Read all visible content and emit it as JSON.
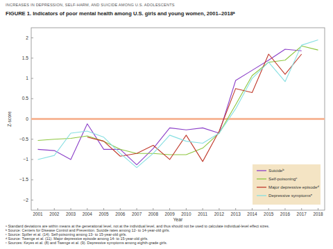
{
  "chart_data": {
    "type": "line",
    "header": "INCREASES IN DEPRESSION, SELF-HARM, AND SUICIDE AMONG U.S. ADOLESCENTS",
    "title": "FIGURE 1. Indicators of poor mental health among U.S. girls and young women, 2001–2018ᵃ",
    "x_label": "Year",
    "y_label": "Z-score",
    "x": [
      2001,
      2002,
      2003,
      2004,
      2005,
      2006,
      2007,
      2008,
      2009,
      2010,
      2011,
      2012,
      2013,
      2014,
      2015,
      2016,
      2017,
      2018
    ],
    "series": [
      {
        "name": "Suicideᵇ",
        "color": "#8b3fc8",
        "values": [
          -0.75,
          -0.78,
          -1.0,
          -0.12,
          -0.75,
          -0.75,
          -1.13,
          -0.73,
          -0.22,
          -0.27,
          -0.22,
          -0.35,
          0.95,
          1.2,
          1.45,
          1.72,
          1.68,
          null
        ]
      },
      {
        "name": "Self-poisoningᶜ",
        "color": "#8dc63f",
        "values": [
          -0.53,
          -0.5,
          -0.48,
          -0.42,
          -0.55,
          -0.75,
          -0.85,
          -0.85,
          -0.88,
          -0.88,
          -0.72,
          -0.35,
          0.35,
          1.07,
          1.4,
          1.45,
          1.8,
          1.7
        ]
      },
      {
        "name": "Major depressive episodeᵈ",
        "color": "#c0392b",
        "values": [
          null,
          null,
          null,
          -0.45,
          -0.55,
          -0.92,
          -0.85,
          -0.65,
          -1.0,
          -0.4,
          -1.05,
          -0.3,
          0.75,
          0.65,
          1.6,
          1.1,
          1.6,
          null
        ]
      },
      {
        "name": "Depressive symptomsᵉ",
        "color": "#86dfe2",
        "values": [
          -1.0,
          -0.9,
          -0.35,
          -0.3,
          -0.45,
          -0.85,
          -1.2,
          -0.85,
          -0.4,
          -0.55,
          -0.6,
          -0.35,
          0.25,
          1.0,
          1.4,
          0.92,
          1.82,
          1.95
        ]
      }
    ],
    "reference_lines": [
      {
        "value": 0,
        "color": "#f7b797"
      }
    ],
    "xlim": [
      2000.6,
      2018.4
    ],
    "xticks": [
      2001,
      2002,
      2003,
      2004,
      2005,
      2006,
      2007,
      2008,
      2009,
      2010,
      2011,
      2012,
      2013,
      2014,
      2015,
      2016,
      2017,
      2018
    ],
    "ylim": [
      -2.25,
      2.25
    ],
    "yticks": [
      {
        "value": -2,
        "label": "−2"
      },
      {
        "value": -1.5,
        "label": "−1.5"
      },
      {
        "value": -1,
        "label": "−1"
      },
      {
        "value": -0.5,
        "label": "−0.5"
      },
      0,
      0.5,
      1,
      1.5,
      2
    ],
    "grid": false,
    "legend": "bottom-right",
    "footnotes": [
      "ᵃ Standard deviations are within means at the generational level, not at the individual level, and thus should not be used to calculate individual-level effect sizes.",
      "ᵇ Source: Centers for Disease Control and Prevention. Suicide rates among 12- to 14-year-old girls.",
      "ᶜ Source: Spiller et al. (14). Self-poisoning among 13- to 15-year-old girls.",
      "ᵈ Source: Twenge et al. (11). Major depressive episode among 14- to 15-year-old girls.",
      "ᵉ Sources: Keyes et al. (8) and Twenge et al. (9). Depressive symptoms among eighth-grade girls."
    ]
  }
}
